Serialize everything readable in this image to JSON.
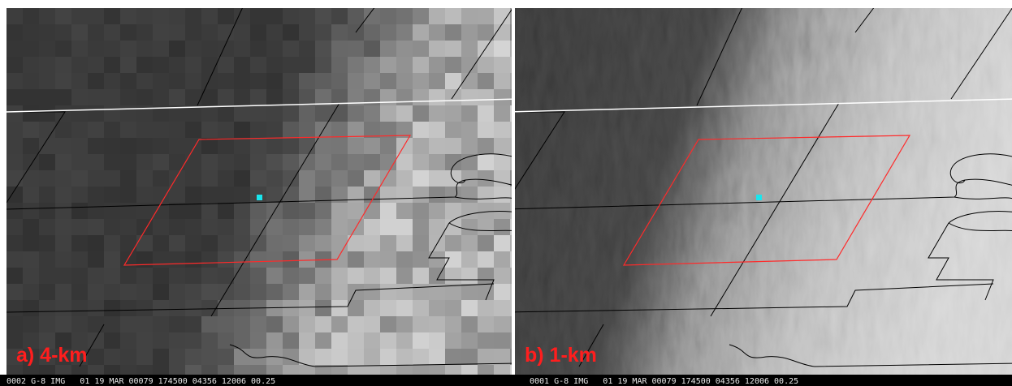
{
  "panels": [
    {
      "label": "a) 4-km",
      "caption": "0002 G-8 IMG   01 19 MAR 00079 174500 04356 12006 00.25"
    },
    {
      "label": "b) 1-km",
      "caption": "0001 G-8 IMG   01 19 MAR 00079 174500 04356 12006 00.25"
    }
  ]
}
